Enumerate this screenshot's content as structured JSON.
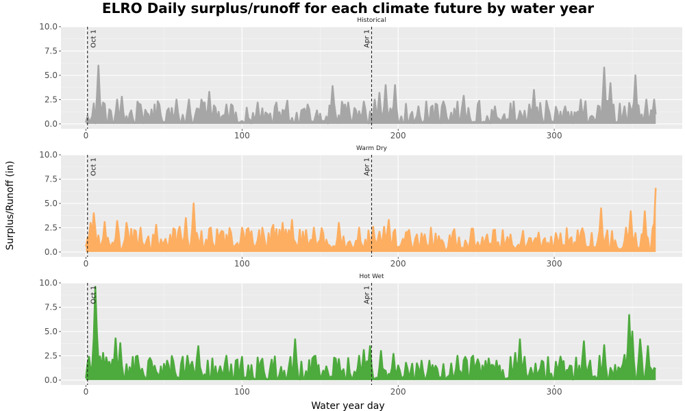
{
  "title": "ELRO Daily surplus/runoff for each climate future by water year",
  "xlabel": "Water year day",
  "ylabel": "Surplus/Runoff (in)",
  "chart_data": {
    "type": "line",
    "facets": [
      "Historical",
      "Warm Dry",
      "Hot Wet"
    ],
    "xlim": [
      -16,
      382
    ],
    "ylim": [
      -0.5,
      10
    ],
    "x_ticks": [
      0,
      100,
      200,
      300
    ],
    "y_ticks": [
      0.0,
      2.5,
      5.0,
      7.5,
      10.0
    ],
    "x_tick_labels": [
      "0",
      "100",
      "200",
      "300"
    ],
    "y_tick_labels": [
      "0.0",
      "2.5",
      "5.0",
      "7.5",
      "10.0"
    ],
    "grid": true,
    "area_fill": true,
    "reference_lines": [
      {
        "x": 1,
        "label": "Oct 1"
      },
      {
        "x": 183,
        "label": "Apr 1"
      }
    ],
    "series": [
      {
        "facet": "Historical",
        "color": "#a6a6a6",
        "days": 366,
        "typical_daily_range": [
          0.2,
          2.4
        ],
        "peaks": [
          {
            "x": 8,
            "y": 6.0
          },
          {
            "x": 11,
            "y": 2.2
          },
          {
            "x": 20,
            "y": 2.5
          },
          {
            "x": 23,
            "y": 2.8
          },
          {
            "x": 35,
            "y": 2.0
          },
          {
            "x": 47,
            "y": 2.0
          },
          {
            "x": 58,
            "y": 2.5
          },
          {
            "x": 66,
            "y": 2.5
          },
          {
            "x": 74,
            "y": 2.5
          },
          {
            "x": 79,
            "y": 3.3
          },
          {
            "x": 90,
            "y": 2.0
          },
          {
            "x": 110,
            "y": 2.2
          },
          {
            "x": 122,
            "y": 2.2
          },
          {
            "x": 142,
            "y": 2.0
          },
          {
            "x": 158,
            "y": 3.9
          },
          {
            "x": 168,
            "y": 2.2
          },
          {
            "x": 178,
            "y": 2.3
          },
          {
            "x": 185,
            "y": 2.5
          },
          {
            "x": 188,
            "y": 3.2
          },
          {
            "x": 192,
            "y": 4.0
          },
          {
            "x": 198,
            "y": 4.0
          },
          {
            "x": 213,
            "y": 1.8
          },
          {
            "x": 230,
            "y": 1.8
          },
          {
            "x": 242,
            "y": 2.9
          },
          {
            "x": 262,
            "y": 1.8
          },
          {
            "x": 287,
            "y": 3.5
          },
          {
            "x": 307,
            "y": 1.8
          },
          {
            "x": 317,
            "y": 2.5
          },
          {
            "x": 332,
            "y": 5.8
          },
          {
            "x": 336,
            "y": 4.2
          },
          {
            "x": 345,
            "y": 1.8
          },
          {
            "x": 352,
            "y": 5.0
          },
          {
            "x": 359,
            "y": 2.5
          },
          {
            "x": 364,
            "y": 2.5
          }
        ]
      },
      {
        "facet": "Warm Dry",
        "color": "#fdae61",
        "days": 366,
        "typical_daily_range": [
          0.5,
          2.5
        ],
        "peaks": [
          {
            "x": 3,
            "y": 3.0
          },
          {
            "x": 5,
            "y": 4.0
          },
          {
            "x": 12,
            "y": 3.1
          },
          {
            "x": 20,
            "y": 3.2
          },
          {
            "x": 26,
            "y": 3.0
          },
          {
            "x": 35,
            "y": 2.5
          },
          {
            "x": 45,
            "y": 2.8
          },
          {
            "x": 60,
            "y": 2.6
          },
          {
            "x": 64,
            "y": 3.5
          },
          {
            "x": 69,
            "y": 5.0
          },
          {
            "x": 80,
            "y": 2.5
          },
          {
            "x": 100,
            "y": 2.5
          },
          {
            "x": 120,
            "y": 2.8
          },
          {
            "x": 126,
            "y": 3.0
          },
          {
            "x": 132,
            "y": 3.3
          },
          {
            "x": 146,
            "y": 2.5
          },
          {
            "x": 162,
            "y": 3.0
          },
          {
            "x": 175,
            "y": 2.5
          },
          {
            "x": 184,
            "y": 2.6
          },
          {
            "x": 191,
            "y": 2.6
          },
          {
            "x": 194,
            "y": 3.3
          },
          {
            "x": 212,
            "y": 1.8
          },
          {
            "x": 235,
            "y": 2.0
          },
          {
            "x": 247,
            "y": 2.4
          },
          {
            "x": 257,
            "y": 1.8
          },
          {
            "x": 272,
            "y": 1.8
          },
          {
            "x": 290,
            "y": 2.0
          },
          {
            "x": 317,
            "y": 2.0
          },
          {
            "x": 330,
            "y": 4.5
          },
          {
            "x": 346,
            "y": 2.5
          },
          {
            "x": 349,
            "y": 4.2
          },
          {
            "x": 358,
            "y": 4.2
          },
          {
            "x": 365,
            "y": 6.6
          }
        ]
      },
      {
        "facet": "Hot Wet",
        "color": "#4daa3d",
        "days": 366,
        "typical_daily_range": [
          0.2,
          2.5
        ],
        "peaks": [
          {
            "x": 2,
            "y": 2.4
          },
          {
            "x": 6,
            "y": 9.6
          },
          {
            "x": 7,
            "y": 5.0
          },
          {
            "x": 11,
            "y": 2.8
          },
          {
            "x": 19,
            "y": 4.3
          },
          {
            "x": 22,
            "y": 3.8
          },
          {
            "x": 33,
            "y": 2.5
          },
          {
            "x": 52,
            "y": 2.0
          },
          {
            "x": 65,
            "y": 2.5
          },
          {
            "x": 72,
            "y": 3.5
          },
          {
            "x": 90,
            "y": 2.5
          },
          {
            "x": 113,
            "y": 2.2
          },
          {
            "x": 134,
            "y": 4.2
          },
          {
            "x": 147,
            "y": 2.5
          },
          {
            "x": 160,
            "y": 2.2
          },
          {
            "x": 175,
            "y": 2.5
          },
          {
            "x": 178,
            "y": 3.1
          },
          {
            "x": 182,
            "y": 3.5
          },
          {
            "x": 189,
            "y": 3.0
          },
          {
            "x": 197,
            "y": 2.7
          },
          {
            "x": 220,
            "y": 2.0
          },
          {
            "x": 238,
            "y": 2.5
          },
          {
            "x": 248,
            "y": 2.5
          },
          {
            "x": 263,
            "y": 2.0
          },
          {
            "x": 275,
            "y": 2.8
          },
          {
            "x": 278,
            "y": 4.2
          },
          {
            "x": 292,
            "y": 2.0
          },
          {
            "x": 310,
            "y": 1.5
          },
          {
            "x": 319,
            "y": 4.0
          },
          {
            "x": 332,
            "y": 3.6
          },
          {
            "x": 345,
            "y": 2.6
          },
          {
            "x": 348,
            "y": 6.7
          },
          {
            "x": 350,
            "y": 5.0
          },
          {
            "x": 355,
            "y": 4.2
          },
          {
            "x": 360,
            "y": 3.5
          }
        ]
      }
    ]
  }
}
